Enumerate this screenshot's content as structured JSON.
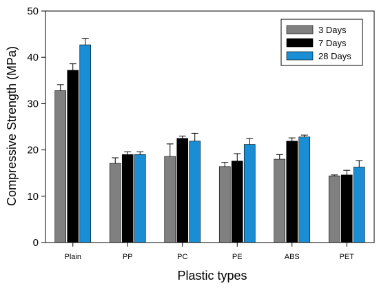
{
  "chart_data": {
    "type": "bar",
    "title": "",
    "xlabel": "Plastic types",
    "ylabel": "Compressive Strength (MPa)",
    "ylim": [
      0,
      50
    ],
    "yticks": [
      0,
      10,
      20,
      30,
      40,
      50
    ],
    "categories": [
      "Plain",
      "PP",
      "PC",
      "PE",
      "ABS",
      "PET"
    ],
    "error_bars": "upper",
    "legend_position": "top-right",
    "series": [
      {
        "name": "3 Days",
        "color": "#808080",
        "values": [
          32.8,
          17.1,
          18.6,
          16.4,
          18.0,
          14.4
        ],
        "errors": [
          1.3,
          1.2,
          2.7,
          0.9,
          1.0,
          0.2
        ]
      },
      {
        "name": "7 Days",
        "color": "#000000",
        "values": [
          37.2,
          19.0,
          22.5,
          17.6,
          21.9,
          14.6
        ],
        "errors": [
          1.4,
          0.6,
          0.5,
          1.6,
          0.7,
          1.0
        ]
      },
      {
        "name": "28 Days",
        "color": "#1a8ed4",
        "values": [
          42.7,
          19.0,
          21.9,
          21.2,
          22.8,
          16.3
        ],
        "errors": [
          1.4,
          0.6,
          1.7,
          1.3,
          0.4,
          1.4
        ]
      }
    ]
  }
}
